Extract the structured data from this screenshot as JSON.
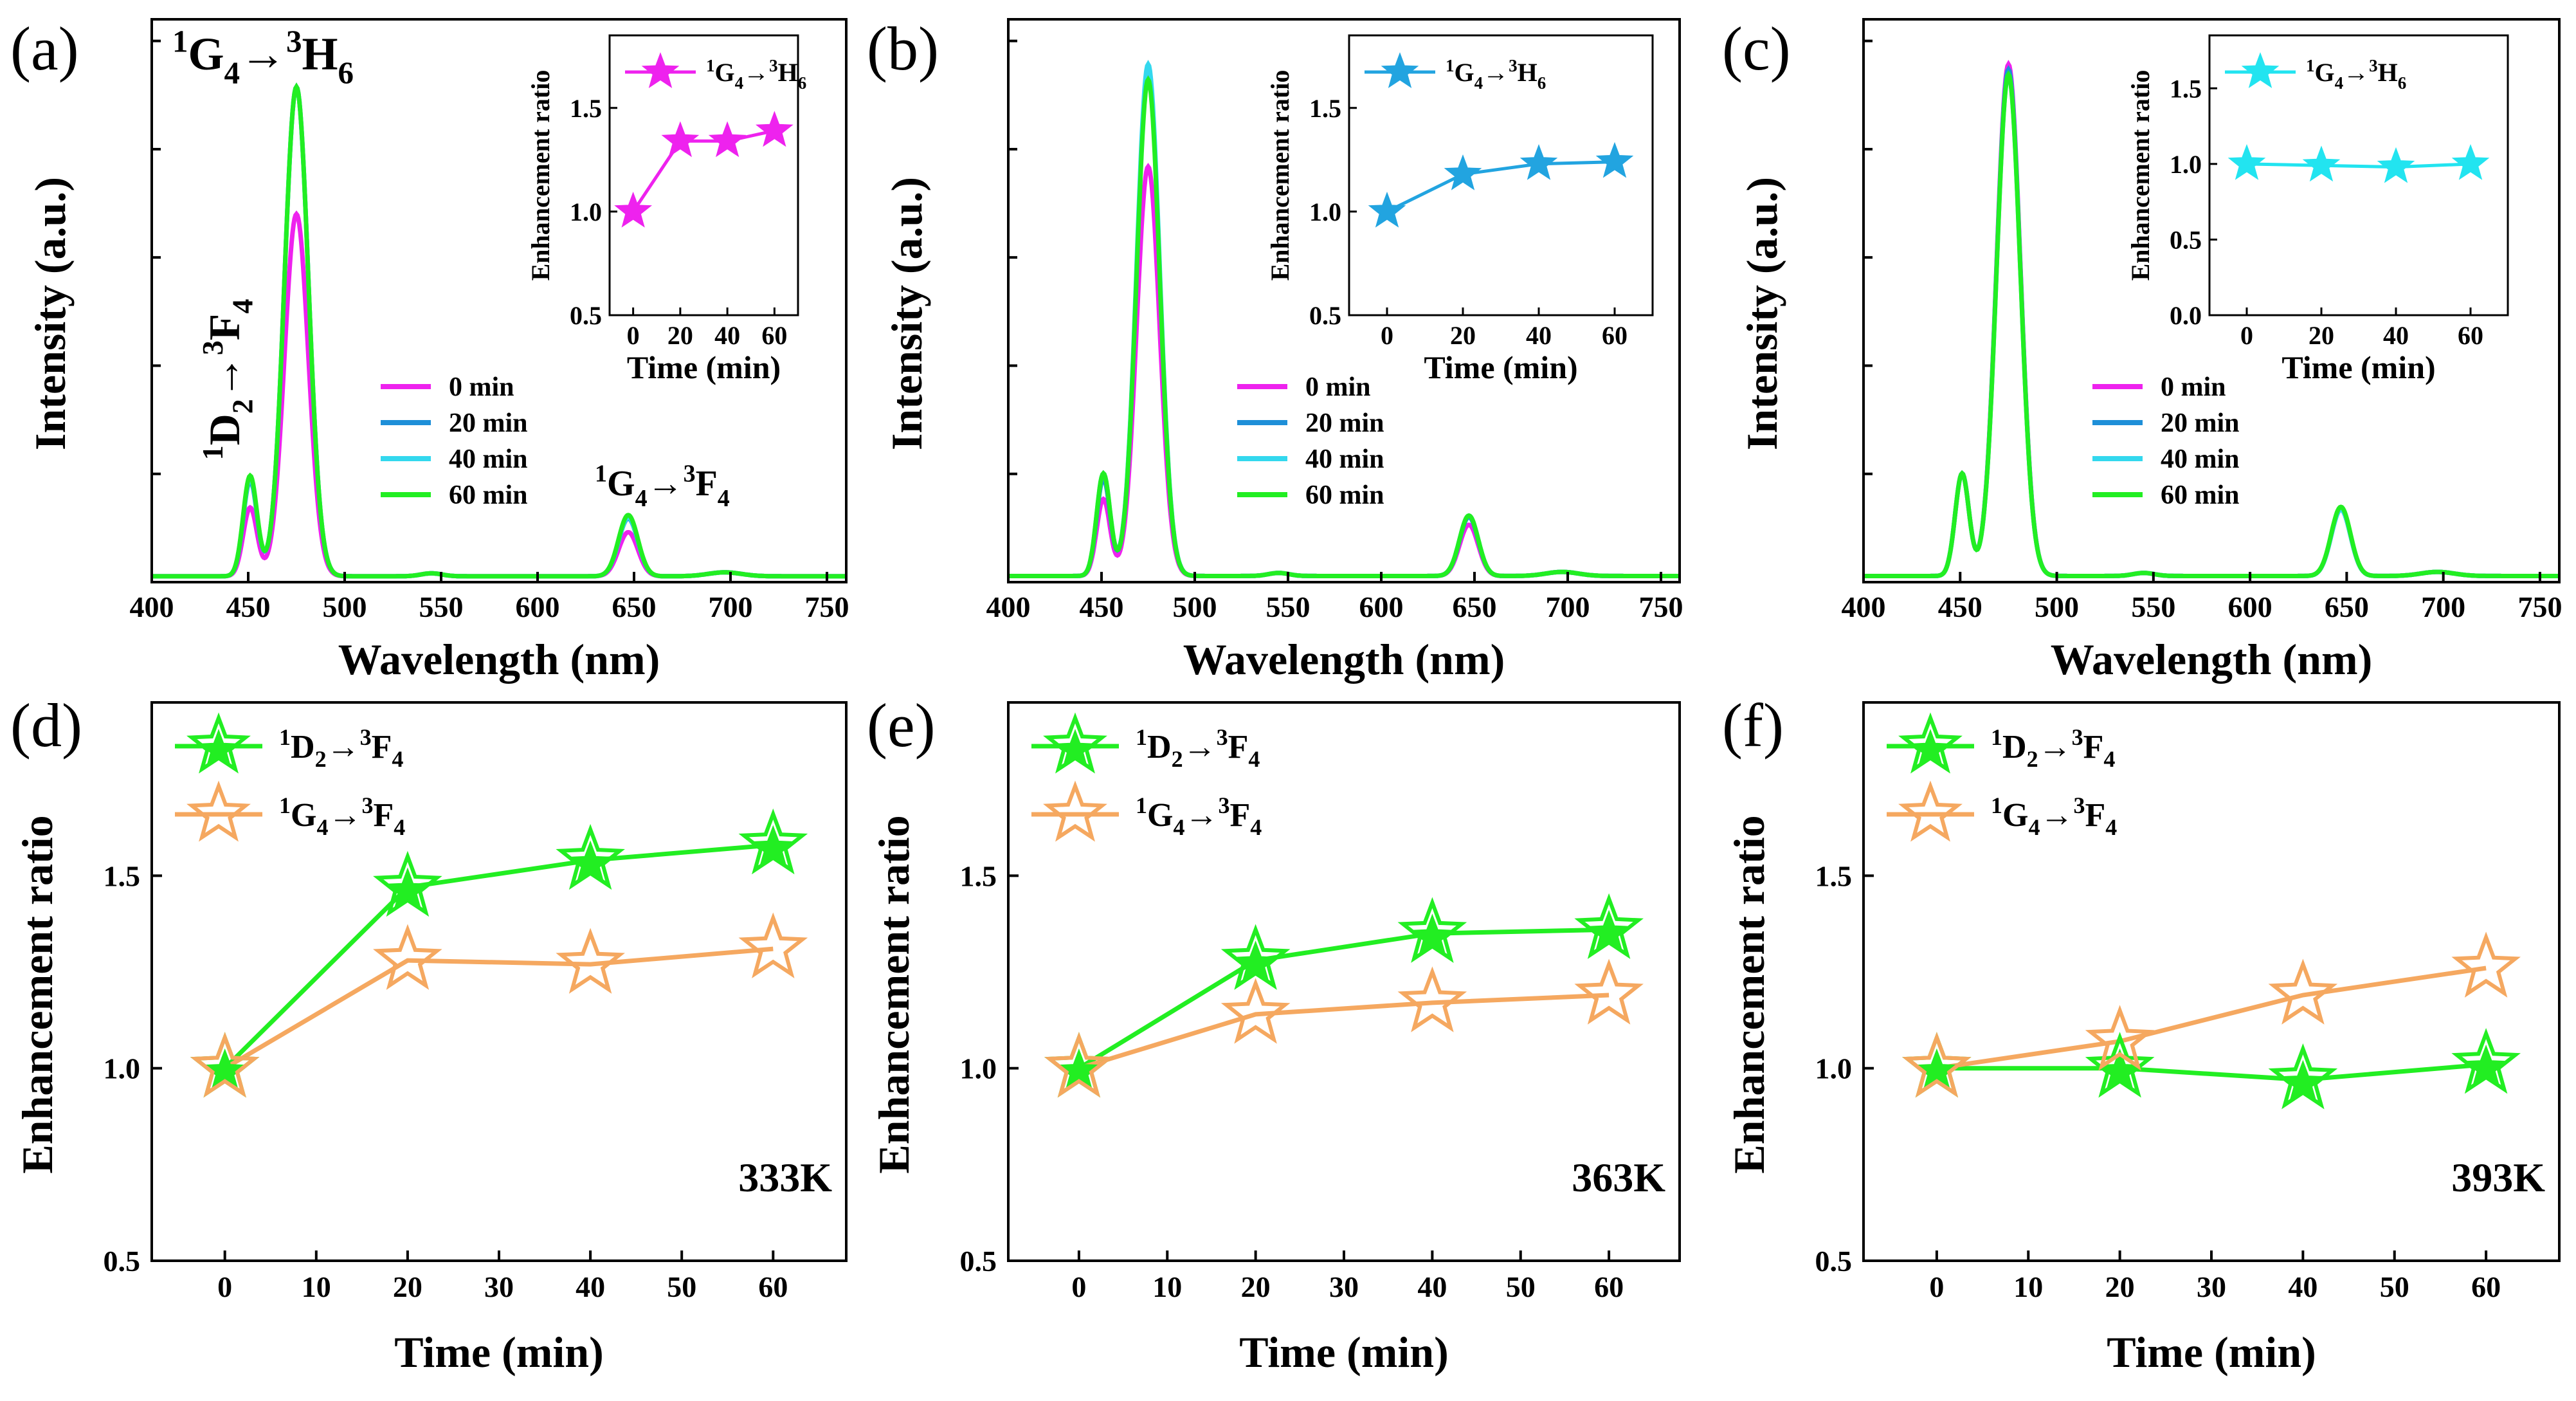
{
  "colors": {
    "c0": "#ee22ee",
    "c20": "#1e8fd8",
    "c40": "#33d8ee",
    "c60": "#22ee22",
    "green": "#22ee22",
    "orange": "#f5a860",
    "inset_a": "#ee22ee",
    "inset_b": "#22a4e0",
    "inset_c": "#22e4f0"
  },
  "chart_data": [
    {
      "id": "a",
      "type": "line",
      "panel_label": "(a)",
      "xlabel": "Wavelength (nm)",
      "ylabel": "Intensity (a.u.)",
      "xlim": [
        400,
        760
      ],
      "ylim": [
        0,
        1.15
      ],
      "x_ticks": [
        "400",
        "450",
        "500",
        "550",
        "600",
        "650",
        "700",
        "750"
      ],
      "series": [
        {
          "name": "0  min",
          "color": "c0",
          "peaks": [
            0.14,
            0.74,
            0.09
          ]
        },
        {
          "name": "20 min",
          "color": "c20",
          "peaks": [
            0.195,
            1.0,
            0.118
          ]
        },
        {
          "name": "40 min",
          "color": "c40",
          "peaks": [
            0.2,
            1.0,
            0.12
          ]
        },
        {
          "name": "60 min",
          "color": "c60",
          "peaks": [
            0.205,
            1.0,
            0.125
          ]
        }
      ],
      "annotations": [
        {
          "label": "1G4→3H6",
          "sup1": "1",
          "sub1": "4",
          "sup2": "3",
          "sub2": "6",
          "letter1": "G",
          "letter2": "H",
          "arrow": "→"
        },
        {
          "label": "1D2→3F4",
          "sup1": "1",
          "sub1": "2",
          "sup2": "3",
          "sub2": "4",
          "letter1": "D",
          "letter2": "F",
          "arrow": "→"
        },
        {
          "label": "1G4→3F4",
          "sup1": "1",
          "sub1": "4",
          "sup2": "3",
          "sub2": "4",
          "letter1": "G",
          "letter2": "F",
          "arrow": "→"
        }
      ],
      "inset": {
        "ylabel": "Enhancement ratio",
        "xlabel": "Time (min)",
        "legend": "1G4→3H6",
        "legend_parts": {
          "sup1": "1",
          "letter1": "G",
          "sub1": "4",
          "arrow": "→",
          "sup2": "3",
          "letter2": "H",
          "sub2": "6"
        },
        "color": "inset_a",
        "x": [
          0,
          20,
          40,
          60
        ],
        "values": [
          1.0,
          1.34,
          1.34,
          1.39
        ],
        "ylim": [
          0.5,
          1.85
        ],
        "y_ticks": [
          "0.5",
          "1.0",
          "1.5"
        ],
        "x_ticks": [
          "0",
          "20",
          "40",
          "60"
        ]
      }
    },
    {
      "id": "b",
      "type": "line",
      "panel_label": "(b)",
      "xlabel": "Wavelength (nm)",
      "ylabel": "Intensity (a.u.)",
      "xlim": [
        400,
        760
      ],
      "ylim": [
        0,
        1.1
      ],
      "x_ticks": [
        "400",
        "450",
        "500",
        "550",
        "600",
        "650",
        "700",
        "750"
      ],
      "series": [
        {
          "name": "0  min",
          "color": "c0",
          "peaks": [
            0.15,
            0.8,
            0.1
          ]
        },
        {
          "name": "20 min",
          "color": "c20",
          "peaks": [
            0.19,
            0.98,
            0.115
          ]
        },
        {
          "name": "40 min",
          "color": "c40",
          "peaks": [
            0.2,
            1.0,
            0.118
          ]
        },
        {
          "name": "60 min",
          "color": "c60",
          "peaks": [
            0.2,
            0.97,
            0.118
          ]
        }
      ],
      "inset": {
        "ylabel": "Enhancement ratio",
        "xlabel": "Time (min)",
        "legend": "1G4→3H6",
        "legend_parts": {
          "sup1": "1",
          "letter1": "G",
          "sub1": "4",
          "arrow": "→",
          "sup2": "3",
          "letter2": "H",
          "sub2": "6"
        },
        "color": "inset_b",
        "x": [
          0,
          20,
          40,
          60
        ],
        "values": [
          1.0,
          1.18,
          1.23,
          1.24
        ],
        "ylim": [
          0.5,
          1.85
        ],
        "y_ticks": [
          "0.5",
          "1.0",
          "1.5"
        ],
        "x_ticks": [
          "0",
          "20",
          "40",
          "60"
        ]
      }
    },
    {
      "id": "c",
      "type": "line",
      "panel_label": "(c)",
      "xlabel": "Wavelength (nm)",
      "ylabel": "Intensity (a.u.)",
      "xlim": [
        400,
        760
      ],
      "ylim": [
        0,
        1.1
      ],
      "x_ticks": [
        "400",
        "450",
        "500",
        "550",
        "600",
        "650",
        "700",
        "750"
      ],
      "series": [
        {
          "name": "0  min",
          "color": "c0",
          "peaks": [
            0.2,
            1.0,
            0.13
          ]
        },
        {
          "name": "20 min",
          "color": "c20",
          "peaks": [
            0.2,
            0.99,
            0.13
          ]
        },
        {
          "name": "40 min",
          "color": "c40",
          "peaks": [
            0.2,
            0.98,
            0.13
          ]
        },
        {
          "name": "60 min",
          "color": "c60",
          "peaks": [
            0.2,
            0.98,
            0.135
          ]
        }
      ],
      "inset": {
        "ylabel": "Enhancement ratio",
        "xlabel": "Time (min)",
        "legend": "1G4→3H6",
        "legend_parts": {
          "sup1": "1",
          "letter1": "G",
          "sub1": "4",
          "arrow": "→",
          "sup2": "3",
          "letter2": "H",
          "sub2": "6"
        },
        "color": "inset_c",
        "x": [
          0,
          20,
          40,
          60
        ],
        "values": [
          1.0,
          0.99,
          0.98,
          1.0
        ],
        "ylim": [
          0.0,
          1.85
        ],
        "y_ticks": [
          "0.0",
          "0.5",
          "1.0",
          "1.5"
        ],
        "x_ticks": [
          "0",
          "20",
          "40",
          "60"
        ]
      }
    },
    {
      "id": "d",
      "type": "line",
      "panel_label": "(d)",
      "xlabel": "Time (min)",
      "ylabel": "Enhancement ratio",
      "temperature": "333K",
      "xlim": [
        -8,
        68
      ],
      "ylim": [
        0.5,
        1.95
      ],
      "x_ticks": [
        "0",
        "10",
        "20",
        "30",
        "40",
        "50",
        "60"
      ],
      "y_ticks": [
        "0.5",
        "1.0",
        "1.5"
      ],
      "x": [
        0,
        20,
        40,
        60
      ],
      "series": [
        {
          "name": "1D2→3F4",
          "letter1": "D",
          "sub1": "2",
          "letter2": "F",
          "sub2": "4",
          "color": "green",
          "values": [
            1.0,
            1.47,
            1.54,
            1.58
          ]
        },
        {
          "name": "1G4→3F4",
          "letter1": "G",
          "sub1": "4",
          "letter2": "F",
          "sub2": "4",
          "color": "orange",
          "values": [
            1.0,
            1.28,
            1.27,
            1.31
          ]
        }
      ]
    },
    {
      "id": "e",
      "type": "line",
      "panel_label": "(e)",
      "xlabel": "Time (min)",
      "ylabel": "Enhancement ratio",
      "temperature": "363K",
      "xlim": [
        -8,
        68
      ],
      "ylim": [
        0.5,
        1.95
      ],
      "x_ticks": [
        "0",
        "10",
        "20",
        "30",
        "40",
        "50",
        "60"
      ],
      "y_ticks": [
        "0.5",
        "1.0",
        "1.5"
      ],
      "x": [
        0,
        20,
        40,
        60
      ],
      "series": [
        {
          "name": "1D2→3F4",
          "letter1": "D",
          "sub1": "2",
          "letter2": "F",
          "sub2": "4",
          "color": "green",
          "values": [
            1.0,
            1.28,
            1.35,
            1.36
          ]
        },
        {
          "name": "1G4→3F4",
          "letter1": "G",
          "sub1": "4",
          "letter2": "F",
          "sub2": "4",
          "color": "orange",
          "values": [
            1.0,
            1.14,
            1.17,
            1.19
          ]
        }
      ]
    },
    {
      "id": "f",
      "type": "line",
      "panel_label": "(f)",
      "xlabel": "Time (min)",
      "ylabel": "Enhancement ratio",
      "temperature": "393K",
      "xlim": [
        -8,
        68
      ],
      "ylim": [
        0.5,
        1.95
      ],
      "x_ticks": [
        "0",
        "10",
        "20",
        "30",
        "40",
        "50",
        "60"
      ],
      "y_ticks": [
        "0.5",
        "1.0",
        "1.5"
      ],
      "x": [
        0,
        20,
        40,
        60
      ],
      "series": [
        {
          "name": "1D2→3F4",
          "letter1": "D",
          "sub1": "2",
          "letter2": "F",
          "sub2": "4",
          "color": "green",
          "values": [
            1.0,
            1.0,
            0.97,
            1.01
          ]
        },
        {
          "name": "1G4→3F4",
          "letter1": "G",
          "sub1": "4",
          "letter2": "F",
          "sub2": "4",
          "color": "orange",
          "values": [
            1.0,
            1.07,
            1.19,
            1.26
          ]
        }
      ]
    }
  ]
}
